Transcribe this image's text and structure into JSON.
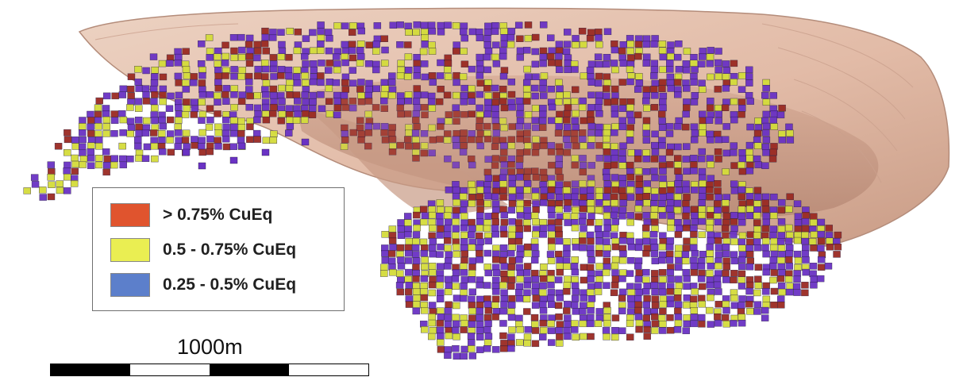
{
  "figure": {
    "legend": {
      "items": [
        {
          "label": "> 0.75% CuEq",
          "color": "#e0542e"
        },
        {
          "label": "0.5 - 0.75% CuEq",
          "color": "#eaee52"
        },
        {
          "label": "0.25 - 0.5% CuEq",
          "color": "#5c7fcb"
        }
      ]
    },
    "scale_bar": {
      "label": "1000m",
      "segment_colors": [
        "#000000",
        "#ffffff",
        "#000000",
        "#ffffff"
      ]
    },
    "colors": {
      "pit_shell": "#e8c6b4",
      "pit_shell_shadow": "#c49c8a",
      "high_grade_block": "#9a2a22",
      "mid_grade_block": "#d4dc3a",
      "low_grade_block": "#6a32c4"
    }
  }
}
